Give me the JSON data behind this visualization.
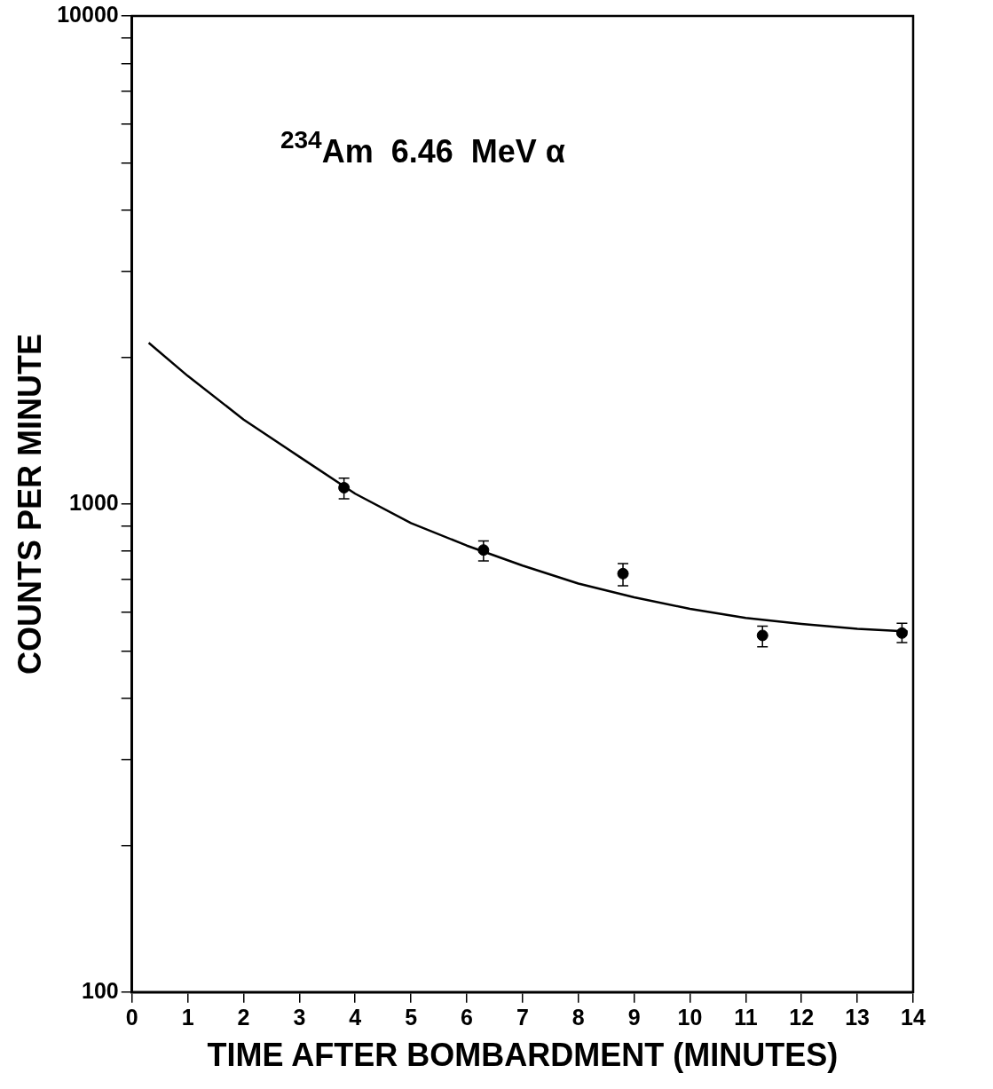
{
  "chart_data": {
    "type": "scatter",
    "xlabel": "TIME AFTER BOMBARDMENT (MINUTES)",
    "ylabel": "COUNTS PER MINUTE",
    "annotations": [
      "$^{234}$Am  6.46  MeV α"
    ],
    "log": "y",
    "grid": false,
    "legend": false,
    "marker": "circle",
    "xlim": [
      0,
      14
    ],
    "xticks": [
      0,
      1,
      2,
      3,
      4,
      5,
      6,
      7,
      8,
      9,
      10,
      11,
      12,
      13,
      14
    ],
    "ylim": [
      100,
      10000
    ],
    "yticks": [
      100,
      {
        "value": 200,
        "label": null
      },
      {
        "value": 300,
        "label": null
      },
      {
        "value": 400,
        "label": null
      },
      {
        "value": 500,
        "label": null
      },
      {
        "value": 600,
        "label": null
      },
      {
        "value": 700,
        "label": null
      },
      {
        "value": 800,
        "label": null
      },
      {
        "value": 900,
        "label": null
      },
      1000,
      {
        "value": 2000,
        "label": null
      },
      {
        "value": 3000,
        "label": null
      },
      {
        "value": 4000,
        "label": null
      },
      {
        "value": 5000,
        "label": null
      },
      {
        "value": 6000,
        "label": null
      },
      {
        "value": 7000,
        "label": null
      },
      {
        "value": 8000,
        "label": null
      },
      {
        "value": 9000,
        "label": null
      },
      10000
    ],
    "series": [
      {
        "type": "scatter",
        "color": "#000000",
        "x": [
          3.8,
          6.3,
          8.8,
          11.3,
          13.8
        ],
        "values": [
          1080,
          805,
          720,
          538,
          544
        ],
        "errors": [
          [
            1025,
            1130
          ],
          [
            765,
            840
          ],
          [
            680,
            755
          ],
          [
            510,
            562
          ],
          [
            520,
            570
          ]
        ]
      },
      {
        "type": "line",
        "color": "#000000",
        "marker": "none",
        "line_style": "solid",
        "x": [
          0.3,
          1,
          2,
          3,
          4,
          5,
          6,
          7,
          8,
          9,
          10,
          11,
          12,
          13,
          13.9
        ],
        "values": [
          2140,
          1830,
          1490,
          1250,
          1050,
          914,
          822,
          748,
          687,
          644,
          610,
          584,
          568,
          555,
          548
        ]
      }
    ]
  }
}
